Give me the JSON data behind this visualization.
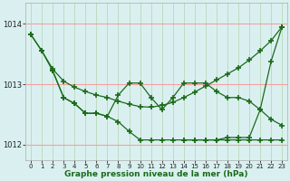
{
  "xlabel": "Graphe pression niveau de la mer (hPa)",
  "background_color": "#daf0f0",
  "grid_color_h": "#f5a0a0",
  "grid_color_v": "#b8d8b8",
  "line_color": "#1a6b1a",
  "xlim": [
    -0.5,
    23.5
  ],
  "ylim": [
    1011.75,
    1014.35
  ],
  "yticks": [
    1012,
    1013,
    1014
  ],
  "xticks": [
    0,
    1,
    2,
    3,
    4,
    5,
    6,
    7,
    8,
    9,
    10,
    11,
    12,
    13,
    14,
    15,
    16,
    17,
    18,
    19,
    20,
    21,
    22,
    23
  ],
  "line1_x": [
    0,
    1,
    2,
    3,
    4,
    5,
    6,
    7,
    8,
    9,
    10,
    11,
    12,
    13,
    14,
    15,
    16,
    17,
    18,
    19,
    20,
    21,
    22,
    23
  ],
  "line1_y": [
    1013.82,
    1013.55,
    1013.25,
    1013.05,
    1012.95,
    1012.88,
    1012.82,
    1012.78,
    1012.72,
    1012.67,
    1012.63,
    1012.62,
    1012.65,
    1012.7,
    1012.78,
    1012.87,
    1012.97,
    1013.07,
    1013.17,
    1013.27,
    1013.4,
    1013.55,
    1013.72,
    1013.95
  ],
  "line2_x": [
    0,
    1,
    2,
    3,
    4,
    5,
    6,
    7,
    8,
    9,
    10,
    11,
    12,
    13,
    14,
    15,
    16,
    17,
    18,
    19,
    20,
    21,
    22,
    23
  ],
  "line2_y": [
    1013.82,
    1013.55,
    1013.22,
    1012.78,
    1012.68,
    1012.52,
    1012.52,
    1012.47,
    1012.38,
    1012.22,
    1012.08,
    1012.08,
    1012.08,
    1012.08,
    1012.08,
    1012.08,
    1012.08,
    1012.08,
    1012.08,
    1012.08,
    1012.08,
    1012.08,
    1012.08,
    1012.08
  ],
  "line3_x": [
    2,
    3,
    4,
    5,
    6,
    7,
    8,
    9,
    10,
    11,
    12,
    13,
    14,
    15,
    16,
    17,
    18,
    19,
    20,
    21,
    22,
    23
  ],
  "line3_y": [
    1013.22,
    1012.78,
    1012.68,
    1012.52,
    1012.52,
    1012.47,
    1012.82,
    1013.02,
    1013.02,
    1012.78,
    1012.58,
    1012.78,
    1013.02,
    1013.02,
    1013.02,
    1012.88,
    1012.78,
    1012.78,
    1012.72,
    1012.58,
    1012.42,
    1012.32
  ],
  "line4_x": [
    14,
    15,
    16,
    17,
    18,
    19,
    20,
    21,
    22,
    23
  ],
  "line4_y": [
    1012.08,
    1012.08,
    1012.08,
    1012.08,
    1012.12,
    1012.12,
    1012.12,
    1012.58,
    1013.38,
    1013.95
  ]
}
